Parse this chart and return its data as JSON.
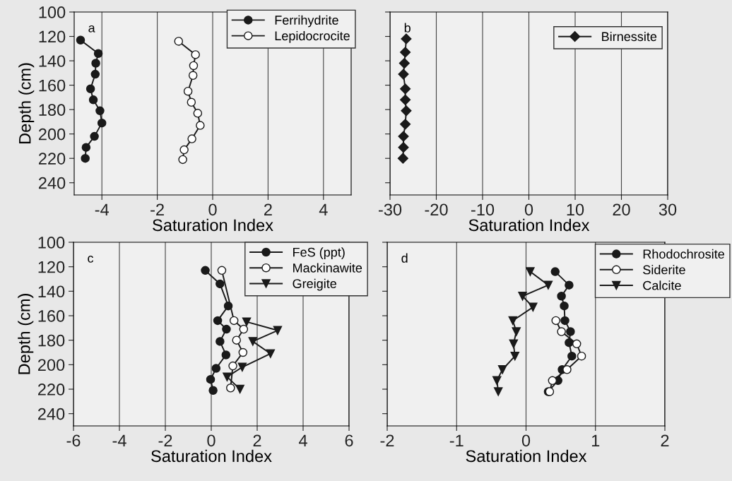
{
  "chart_data": [
    {
      "type": "line",
      "xlabel": "Saturation Index",
      "ylabel": "Depth (cm)",
      "annotations": [
        "a"
      ],
      "xlim": [
        -5,
        5
      ],
      "xticks": [
        -4,
        -2,
        0,
        2,
        4
      ],
      "ylim": [
        250,
        100
      ],
      "yticks": [
        100,
        120,
        140,
        160,
        180,
        200,
        220,
        240
      ],
      "grid": "x",
      "legend": "top right",
      "line_style": "solid",
      "series": [
        {
          "name": "Ferrihydrite",
          "color": "#1a1a1a",
          "marker": "circle",
          "x": [
            -4.77,
            -4.13,
            -4.22,
            -4.24,
            -4.41,
            -4.31,
            -4.07,
            -4.0,
            -4.27,
            -4.57,
            -4.6
          ],
          "values": [
            123,
            134,
            142,
            151,
            163,
            172,
            181,
            191,
            202,
            211,
            220
          ]
        },
        {
          "name": "Lepidocrocite",
          "color": "#ffffff",
          "marker": "circle",
          "x": [
            -1.23,
            -0.62,
            -0.69,
            -0.71,
            -0.89,
            -0.77,
            -0.54,
            -0.45,
            -0.75,
            -1.03,
            -1.08
          ],
          "values": [
            124,
            135,
            144,
            152,
            165,
            174,
            183,
            193,
            204,
            213,
            221
          ]
        }
      ]
    },
    {
      "type": "line",
      "xlabel": "Saturation Index",
      "annotations": [
        "b"
      ],
      "xlim": [
        -30,
        30
      ],
      "xticks": [
        -30,
        -20,
        -10,
        0,
        10,
        20,
        30
      ],
      "ylim": [
        250,
        100
      ],
      "yticks": [
        100,
        120,
        140,
        160,
        180,
        200,
        220,
        240
      ],
      "tick_labels": "x",
      "grid": "x",
      "legend": "top right",
      "line_style": "solid",
      "series": [
        {
          "name": "Birnessite",
          "color": "#1a1a1a",
          "marker": "diamond",
          "x": [
            -26.5,
            -26.7,
            -26.9,
            -27.1,
            -26.7,
            -26.7,
            -26.5,
            -26.7,
            -27.1,
            -27.1,
            -27.2
          ],
          "values": [
            122,
            133,
            142,
            151,
            163,
            172,
            181,
            192,
            202,
            211,
            220
          ]
        }
      ]
    },
    {
      "type": "line",
      "xlabel": "Saturation Index",
      "ylabel": "Depth (cm)",
      "annotations": [
        "c"
      ],
      "xlim": [
        -6,
        6
      ],
      "xticks": [
        -6,
        -4,
        -2,
        0,
        2,
        4,
        6
      ],
      "ylim": [
        250,
        100
      ],
      "yticks": [
        100,
        120,
        140,
        160,
        180,
        200,
        220,
        240
      ],
      "grid": "x",
      "legend": "top right",
      "line_style": "solid",
      "series": [
        {
          "name": "FeS (ppt)",
          "color": "#1a1a1a",
          "marker": "circle",
          "x": [
            -0.26,
            0.38,
            0.74,
            0.28,
            0.66,
            0.38,
            0.64,
            0.21,
            -0.03,
            0.08
          ],
          "values": [
            123,
            134,
            152,
            164,
            171,
            181,
            192,
            203,
            212,
            221
          ]
        },
        {
          "name": "Mackinawite",
          "color": "#ffffff",
          "marker": "circle",
          "x": [
            0.46,
            0.99,
            1.41,
            1.1,
            1.38,
            0.94,
            0.84
          ],
          "values": [
            123,
            164,
            171,
            180,
            190,
            201,
            219
          ]
        },
        {
          "name": "Greigite",
          "color": "#1a1a1a",
          "marker": "triangle",
          "x": [
            1.54,
            2.89,
            1.81,
            2.58,
            1.35,
            0.69,
            1.25
          ],
          "values": [
            165,
            172,
            181,
            191,
            202,
            210,
            220
          ]
        }
      ]
    },
    {
      "type": "line",
      "xlabel": "Saturation Index",
      "annotations": [
        "d"
      ],
      "xlim": [
        -2,
        2
      ],
      "xticks": [
        -2,
        -1,
        0,
        1,
        2
      ],
      "ylim": [
        250,
        100
      ],
      "yticks": [
        100,
        120,
        140,
        160,
        180,
        200,
        220,
        240
      ],
      "tick_labels": "x",
      "grid": "x",
      "legend": "top right",
      "line_style": "solid",
      "series": [
        {
          "name": "Rhodochrosite",
          "color": "#1a1a1a",
          "marker": "circle",
          "x": [
            0.42,
            0.62,
            0.51,
            0.55,
            0.56,
            0.64,
            0.62,
            0.66,
            0.52,
            0.46,
            0.32
          ],
          "values": [
            124,
            135,
            144,
            152,
            164,
            173,
            182,
            193,
            204,
            213,
            222
          ]
        },
        {
          "name": "Siderite",
          "color": "#ffffff",
          "marker": "circle",
          "x": [
            0.43,
            0.51,
            0.73,
            0.8,
            0.59,
            0.38,
            0.34
          ],
          "values": [
            164,
            173,
            183,
            193,
            204,
            213,
            222
          ]
        },
        {
          "name": "Calcite",
          "color": "#1a1a1a",
          "marker": "triangle",
          "x": [
            0.06,
            0.32,
            -0.05,
            0.1,
            -0.19,
            -0.14,
            -0.18,
            -0.16,
            -0.34,
            -0.42,
            -0.4
          ],
          "values": [
            124,
            135,
            144,
            153,
            164,
            173,
            183,
            193,
            204,
            213,
            222
          ]
        }
      ]
    }
  ]
}
